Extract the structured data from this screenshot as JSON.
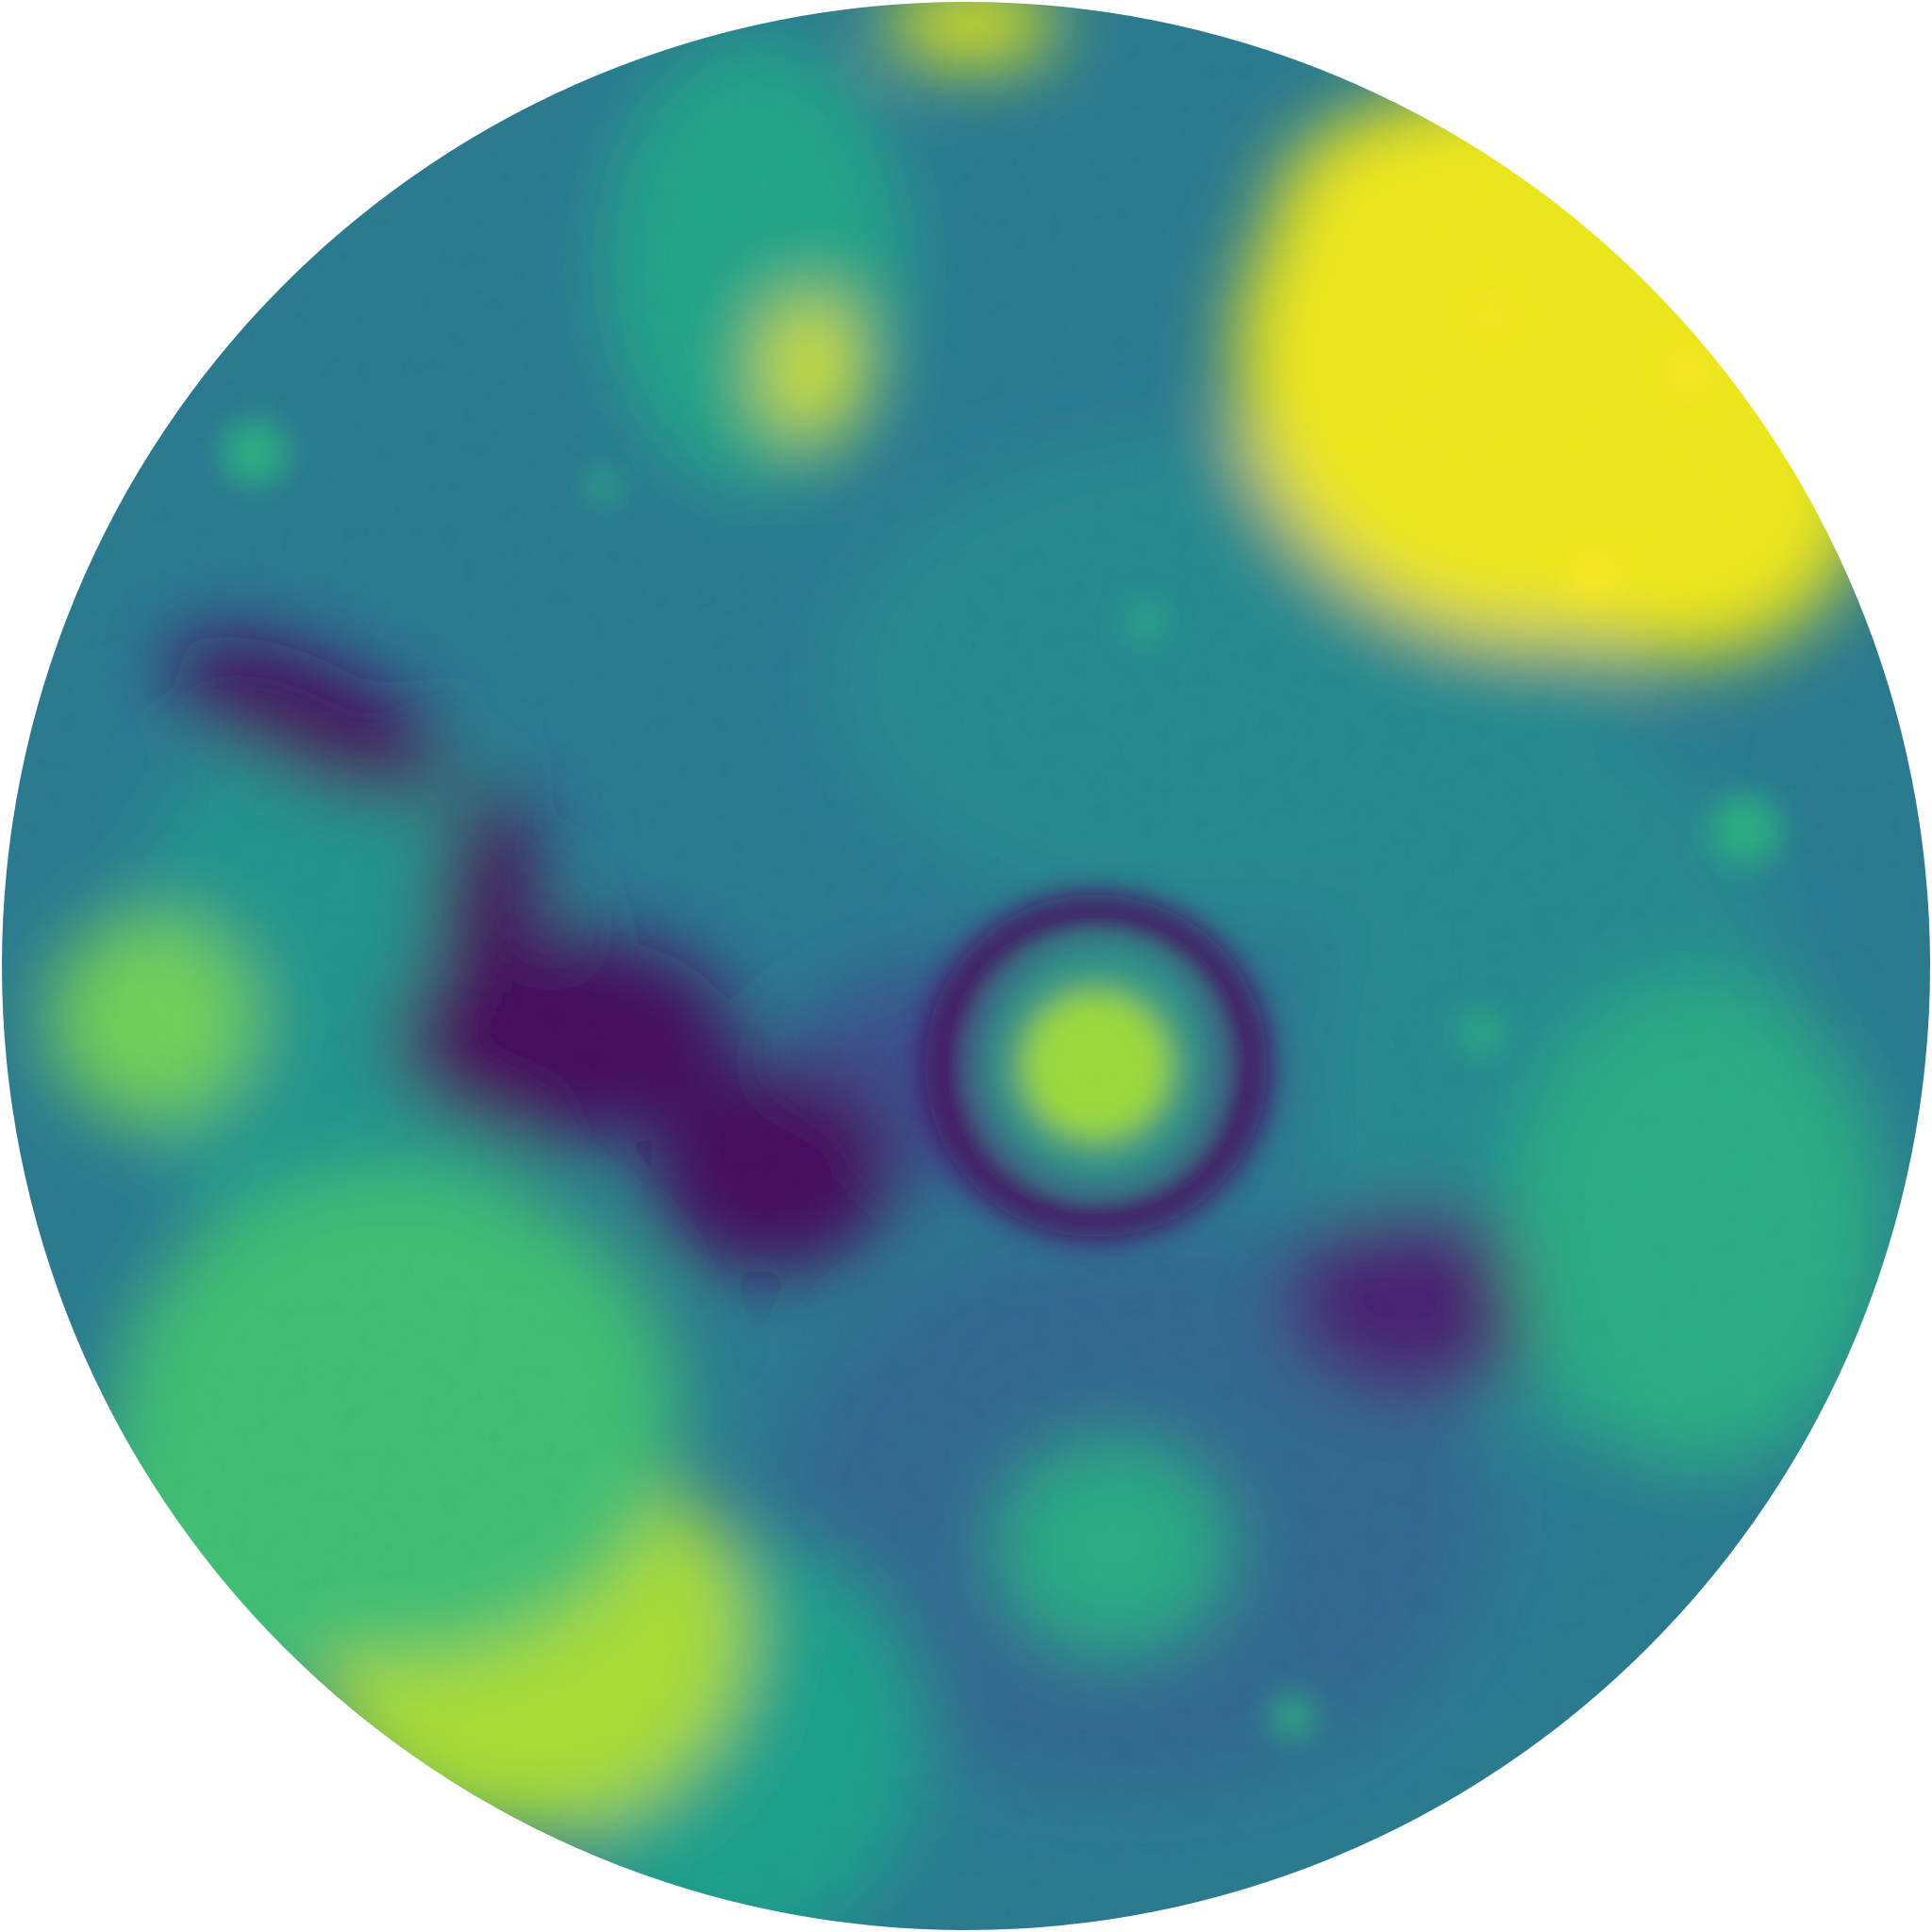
{
  "map": {
    "projection": "circular-disk",
    "background_color": "#ffffff",
    "colormap": {
      "name": "viridis",
      "stops": [
        "#440154",
        "#482878",
        "#3e4989",
        "#31688e",
        "#26828e",
        "#1f9e89",
        "#35b779",
        "#6ece58",
        "#b5de2b",
        "#d8e219",
        "#fde725"
      ]
    },
    "base_level": 0.36,
    "features": [
      {
        "id": "highland-northeast",
        "kind": "high-region",
        "level": 0.95
      },
      {
        "id": "plateau-southwest",
        "kind": "high-region",
        "level": 0.78
      },
      {
        "id": "uplands-south-west",
        "kind": "high-region",
        "level": 0.62
      },
      {
        "id": "basin-west",
        "kind": "high-region",
        "level": 0.7
      },
      {
        "id": "peak-north-center",
        "kind": "peak",
        "level": 0.88
      },
      {
        "id": "peak-north-edge",
        "kind": "peak",
        "level": 0.92
      },
      {
        "id": "ring-crater-center",
        "kind": "crater",
        "rim_level": 0.02,
        "floor_level": 0.76
      },
      {
        "id": "trough-northwest",
        "kind": "depression",
        "level": 0.03
      },
      {
        "id": "trough-center",
        "kind": "depression",
        "level": 0.02
      },
      {
        "id": "trough-southeast",
        "kind": "depression",
        "level": 0.08
      },
      {
        "id": "mound-south-center",
        "kind": "high-region",
        "level": 0.55
      },
      {
        "id": "mound-east",
        "kind": "high-region",
        "level": 0.55
      }
    ]
  }
}
